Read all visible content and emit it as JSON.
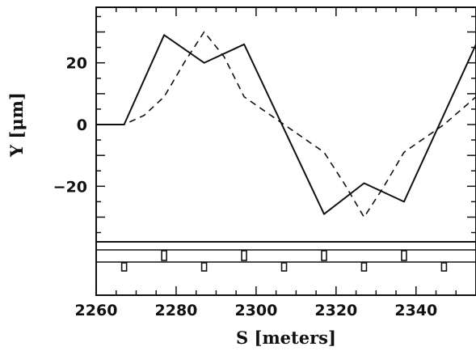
{
  "chart_data": {
    "type": "line",
    "title": "",
    "xlabel": "S [meters]",
    "ylabel": "Y [μm]",
    "xlim": [
      2260,
      2355
    ],
    "ylim": [
      -38,
      38
    ],
    "x_ticks": [
      2260,
      2280,
      2300,
      2320,
      2340
    ],
    "x_tick_labels": [
      "2260",
      "2280",
      "2300",
      "2320",
      "2340"
    ],
    "y_ticks": [
      -20,
      0,
      20
    ],
    "y_tick_labels": [
      "−20",
      "0",
      "20"
    ],
    "grid": false,
    "legend": "none",
    "series": [
      {
        "style": "solid",
        "x": [
          2260,
          2267,
          2277,
          2287,
          2297,
          2317,
          2327,
          2337,
          2355
        ],
        "y": [
          0,
          0,
          29,
          20,
          26,
          -29,
          -19,
          -25,
          26
        ]
      },
      {
        "style": "dashed",
        "x": [
          2260,
          2267,
          2272,
          2277,
          2282,
          2287,
          2292,
          2297,
          2307,
          2317,
          2322,
          2327,
          2332,
          2337,
          2347,
          2355
        ],
        "y": [
          0,
          0,
          3,
          9,
          20,
          30,
          22,
          9,
          0,
          -9,
          -19,
          -30,
          -20,
          -9,
          0,
          9
        ]
      }
    ],
    "lattice": {
      "upper_elements_s": [
        2277,
        2297,
        2317,
        2337
      ],
      "lower_elements_s": [
        2267,
        2287,
        2307,
        2327,
        2347
      ]
    }
  }
}
